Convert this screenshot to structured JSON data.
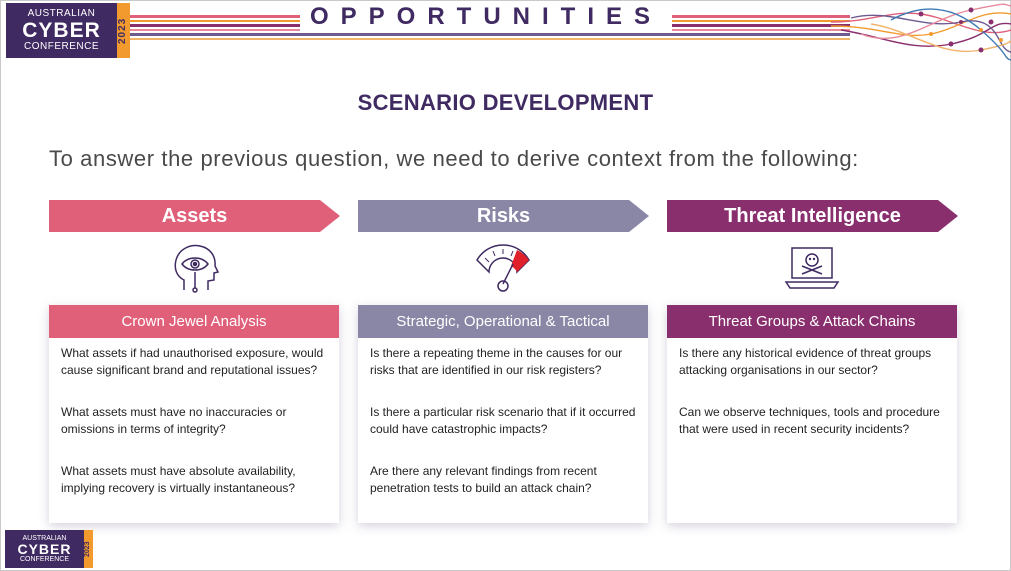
{
  "logo": {
    "line1": "AUSTRALIAN",
    "line2": "CYBER",
    "line3": "CONFERENCE",
    "year": "2023"
  },
  "header": {
    "title": "OPPORTUNITIES"
  },
  "section_title": "SCENARIO DEVELOPMENT",
  "intro": "To answer the previous question, we need to derive context from the following:",
  "colors": {
    "assets": "#e0607a",
    "risks": "#8a86a6",
    "threat": "#8a2f6e",
    "brand_purple": "#3f2a62",
    "brand_orange": "#f29a2e"
  },
  "columns": [
    {
      "arrow_label": "Assets",
      "icon": "eye-head-icon",
      "card_title": "Crown Jewel Analysis",
      "questions": [
        "What assets if had unauthorised exposure, would cause significant brand and reputational issues?",
        "What assets must have no inaccuracies or omissions in terms of integrity?",
        "What assets must have absolute availability, implying recovery is virtually instantaneous?"
      ]
    },
    {
      "arrow_label": "Risks",
      "icon": "gauge-icon",
      "card_title": "Strategic, Operational & Tactical",
      "questions": [
        "Is there a repeating theme in the causes for our risks that are identified in our risk registers?",
        "Is there a particular risk scenario that if it occurred could have catastrophic impacts?",
        "Are there any relevant findings from recent penetration tests to build an attack chain?"
      ]
    },
    {
      "arrow_label": "Threat Intelligence",
      "icon": "laptop-skull-icon",
      "card_title": "Threat Groups & Attack Chains",
      "questions": [
        "Is there any historical evidence of threat groups attacking organisations in our sector?",
        "Can we observe techniques, tools and procedure that were used in recent security incidents?"
      ]
    }
  ]
}
